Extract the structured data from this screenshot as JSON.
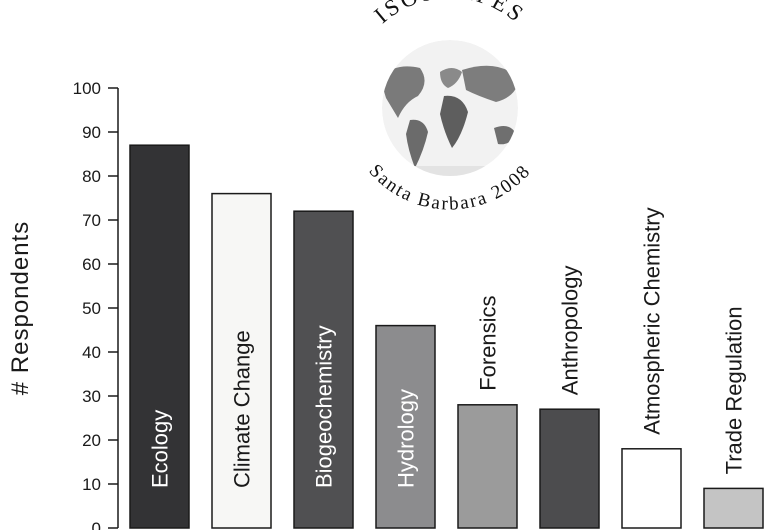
{
  "chart_data": {
    "type": "bar",
    "categories": [
      "Ecology",
      "Climate Change",
      "Biogeochemistry",
      "Hydrology",
      "Forensics",
      "Anthropology",
      "Atmospheric Chemistry",
      "Trade Regulation"
    ],
    "values": [
      87,
      76,
      72,
      46,
      28,
      27,
      18,
      9
    ],
    "bar_colors": [
      "#333335",
      "#f7f7f5",
      "#505052",
      "#8c8c8e",
      "#9b9b9b",
      "#4c4c4e",
      "#ffffff",
      "#c4c4c4"
    ],
    "label_inside_bar": [
      true,
      true,
      true,
      true,
      false,
      false,
      false,
      false
    ],
    "label_colors": [
      "#ffffff",
      "#1a1a1a",
      "#ffffff",
      "#ffffff",
      "#1a1a1a",
      "#1a1a1a",
      "#1a1a1a",
      "#1a1a1a"
    ],
    "ylabel": "# Respondents",
    "ylim": [
      0,
      100
    ],
    "yticks": [
      0,
      10,
      20,
      30,
      40,
      50,
      60,
      70,
      80,
      90,
      100
    ],
    "grid": false
  },
  "logo": {
    "arc_top": "ISOSCAPES",
    "arc_bottom": "Santa Barbara 2008"
  }
}
